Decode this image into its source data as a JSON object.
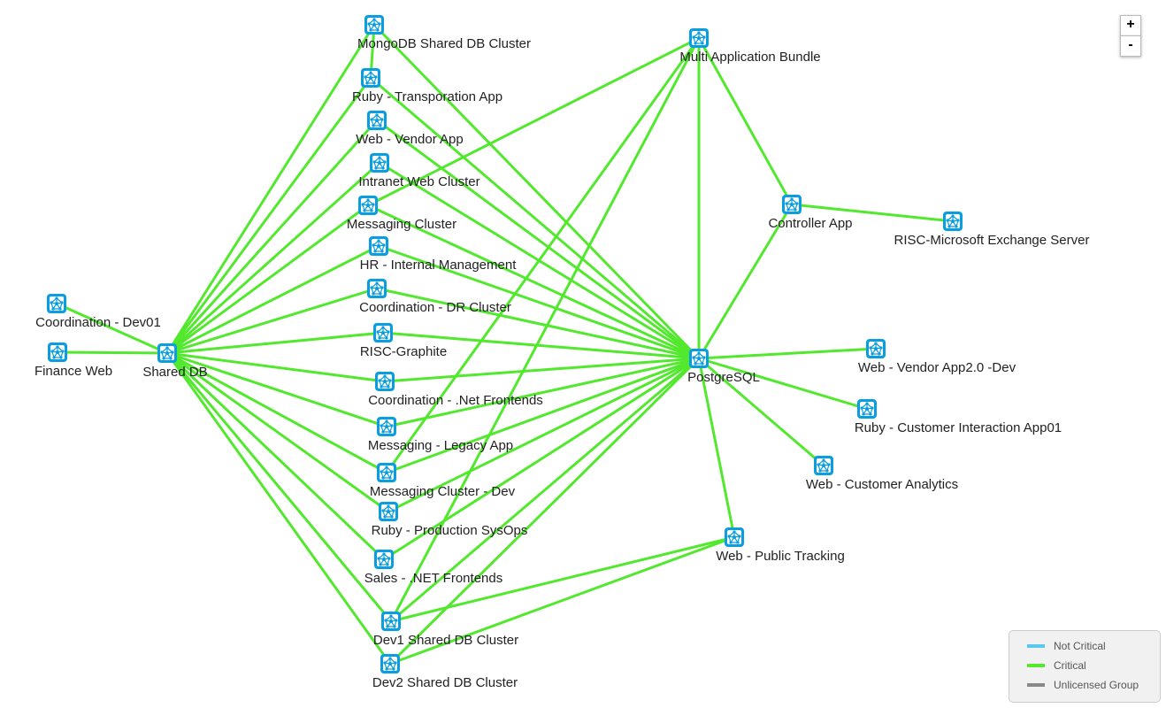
{
  "colors": {
    "edge": "#52e82e",
    "icon": "#0a9ee0",
    "not_critical": "#5bc8f0",
    "critical": "#52e82e",
    "unlicensed": "#888888"
  },
  "nodes": [
    {
      "id": "mongo",
      "label": "MongoDB Shared DB Cluster",
      "icon": "network-icon"
    },
    {
      "id": "rubytrans",
      "label": "Ruby - Transporation App",
      "icon": "network-icon"
    },
    {
      "id": "webvendor",
      "label": "Web - Vendor App",
      "icon": "network-icon"
    },
    {
      "id": "intranet",
      "label": "Intranet Web Cluster",
      "icon": "network-icon"
    },
    {
      "id": "msgcluster",
      "label": "Messaging Cluster",
      "icon": "network-icon"
    },
    {
      "id": "hr",
      "label": "HR - Internal Management",
      "icon": "network-icon"
    },
    {
      "id": "coorddr",
      "label": "Coordination - DR Cluster",
      "icon": "network-icon"
    },
    {
      "id": "graphite",
      "label": "RISC-Graphite",
      "icon": "network-icon"
    },
    {
      "id": "coordnet",
      "label": "Coordination - .Net Frontends",
      "icon": "network-icon"
    },
    {
      "id": "msglegacy",
      "label": "Messaging - Legacy App",
      "icon": "network-icon"
    },
    {
      "id": "msgdev",
      "label": "Messaging Cluster - Dev",
      "icon": "network-icon"
    },
    {
      "id": "rubysysops",
      "label": "Ruby - Production SysOps",
      "icon": "network-icon"
    },
    {
      "id": "salesnet",
      "label": "Sales - .NET Frontends",
      "icon": "network-icon"
    },
    {
      "id": "dev1",
      "label": "Dev1 Shared DB Cluster",
      "icon": "network-icon"
    },
    {
      "id": "dev2",
      "label": "Dev2 Shared DB Cluster",
      "icon": "network-icon"
    },
    {
      "id": "multi",
      "label": "Multi Application Bundle",
      "icon": "network-icon"
    },
    {
      "id": "controller",
      "label": "Controller App",
      "icon": "network-icon"
    },
    {
      "id": "exchange",
      "label": "RISC-Microsoft Exchange Server",
      "icon": "network-icon"
    },
    {
      "id": "postgres",
      "label": "PostgreSQL",
      "icon": "network-icon"
    },
    {
      "id": "vendor2",
      "label": "Web - Vendor App2.0 -Dev",
      "icon": "network-icon"
    },
    {
      "id": "rubycust",
      "label": "Ruby - Customer Interaction App01",
      "icon": "network-icon"
    },
    {
      "id": "custanalytics",
      "label": "Web - Customer Analytics",
      "icon": "network-icon"
    },
    {
      "id": "publictrack",
      "label": "Web - Public Tracking",
      "icon": "network-icon"
    },
    {
      "id": "coorddev01",
      "label": "Coordination - Dev01",
      "icon": "network-icon"
    },
    {
      "id": "finance",
      "label": "Finance Web",
      "icon": "network-icon"
    },
    {
      "id": "shareddb",
      "label": "Shared DB",
      "icon": "network-icon"
    }
  ],
  "edges": [
    [
      "coorddev01",
      "shareddb"
    ],
    [
      "finance",
      "shareddb"
    ],
    [
      "shareddb",
      "mongo"
    ],
    [
      "shareddb",
      "rubytrans"
    ],
    [
      "shareddb",
      "webvendor"
    ],
    [
      "shareddb",
      "intranet"
    ],
    [
      "shareddb",
      "msgcluster"
    ],
    [
      "shareddb",
      "hr"
    ],
    [
      "shareddb",
      "coorddr"
    ],
    [
      "shareddb",
      "graphite"
    ],
    [
      "shareddb",
      "coordnet"
    ],
    [
      "shareddb",
      "msglegacy"
    ],
    [
      "shareddb",
      "msgdev"
    ],
    [
      "shareddb",
      "rubysysops"
    ],
    [
      "shareddb",
      "salesnet"
    ],
    [
      "shareddb",
      "dev1"
    ],
    [
      "shareddb",
      "dev2"
    ],
    [
      "postgres",
      "mongo"
    ],
    [
      "postgres",
      "rubytrans"
    ],
    [
      "postgres",
      "webvendor"
    ],
    [
      "postgres",
      "intranet"
    ],
    [
      "postgres",
      "msgcluster"
    ],
    [
      "postgres",
      "hr"
    ],
    [
      "postgres",
      "coorddr"
    ],
    [
      "postgres",
      "graphite"
    ],
    [
      "postgres",
      "coordnet"
    ],
    [
      "postgres",
      "msglegacy"
    ],
    [
      "postgres",
      "msgdev"
    ],
    [
      "postgres",
      "rubysysops"
    ],
    [
      "postgres",
      "salesnet"
    ],
    [
      "postgres",
      "dev1"
    ],
    [
      "postgres",
      "dev2"
    ],
    [
      "mongo",
      "rubytrans"
    ],
    [
      "multi",
      "postgres"
    ],
    [
      "multi",
      "controller"
    ],
    [
      "controller",
      "postgres"
    ],
    [
      "controller",
      "exchange"
    ],
    [
      "multi",
      "msgcluster"
    ],
    [
      "multi",
      "msgdev"
    ],
    [
      "multi",
      "dev1"
    ],
    [
      "postgres",
      "vendor2"
    ],
    [
      "postgres",
      "rubycust"
    ],
    [
      "postgres",
      "custanalytics"
    ],
    [
      "postgres",
      "publictrack"
    ],
    [
      "publictrack",
      "dev1"
    ],
    [
      "publictrack",
      "dev2"
    ]
  ],
  "zoom": {
    "in": "+",
    "out": "-"
  },
  "legend": {
    "items": [
      {
        "label": "Not Critical",
        "color": "#5bc8f0"
      },
      {
        "label": "Critical",
        "color": "#52e82e"
      },
      {
        "label": "Unlicensed Group",
        "color": "#888888"
      }
    ]
  }
}
